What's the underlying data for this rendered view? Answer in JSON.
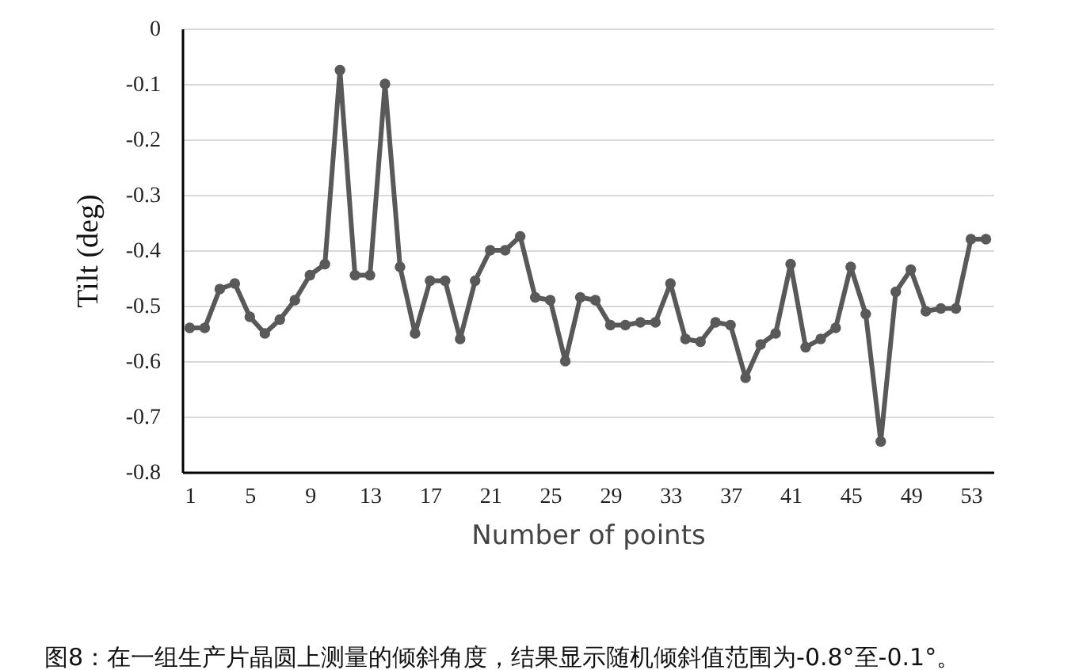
{
  "chart_data": {
    "type": "line",
    "xlabel": "Number of points",
    "ylabel": "Tilt (deg)",
    "x": [
      1,
      2,
      3,
      4,
      5,
      6,
      7,
      8,
      9,
      10,
      11,
      12,
      13,
      14,
      15,
      16,
      17,
      18,
      19,
      20,
      21,
      22,
      23,
      24,
      25,
      26,
      27,
      28,
      29,
      30,
      31,
      32,
      33,
      34,
      35,
      36,
      37,
      38,
      39,
      40,
      41,
      42,
      43,
      44,
      45,
      46,
      47,
      48,
      49,
      50,
      51,
      52,
      53,
      54
    ],
    "series": [
      {
        "color": "#595959",
        "values": [
          -0.54,
          -0.54,
          -0.47,
          -0.46,
          -0.52,
          -0.55,
          -0.525,
          -0.49,
          -0.445,
          -0.425,
          -0.075,
          -0.445,
          -0.445,
          -0.1,
          -0.43,
          -0.55,
          -0.455,
          -0.455,
          -0.56,
          -0.455,
          -0.4,
          -0.4,
          -0.375,
          -0.485,
          -0.49,
          -0.6,
          -0.485,
          -0.49,
          -0.535,
          -0.535,
          -0.53,
          -0.53,
          -0.46,
          -0.56,
          -0.565,
          -0.53,
          -0.535,
          -0.63,
          -0.57,
          -0.55,
          -0.425,
          -0.575,
          -0.56,
          -0.54,
          -0.43,
          -0.515,
          -0.745,
          -0.475,
          -0.435,
          -0.51,
          -0.505,
          -0.505,
          -0.38,
          -0.38
        ]
      }
    ],
    "xlim": [
      0.5,
      54.5
    ],
    "xticks": [
      1,
      5,
      9,
      13,
      17,
      21,
      25,
      29,
      33,
      37,
      41,
      45,
      49,
      53
    ],
    "ylim": [
      -0.8,
      0
    ],
    "yticks": [
      -0.8,
      -0.7,
      -0.6,
      -0.5,
      -0.4,
      -0.3,
      -0.2,
      -0.1,
      0
    ],
    "grid": "y",
    "marker": "circle",
    "line_style": "solid",
    "annotations": [
      "图8：在一组生产片晶圆上测量的倾斜角度，结果显示随机倾斜值范围为-0.8°至-0.1°。"
    ]
  }
}
